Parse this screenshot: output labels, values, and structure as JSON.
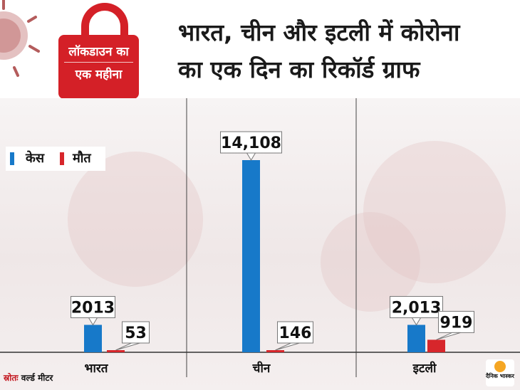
{
  "header": {
    "lock_line1": "लॉकडाउन का",
    "lock_line2": "एक महीना",
    "title_line1": "भारत, चीन और इटली में कोरोना",
    "title_line2": "का एक दिन का रिकॉर्ड ग्राफ"
  },
  "legend": {
    "cases_label": "केस",
    "deaths_label": "मौत"
  },
  "source": {
    "label": "स्रोतः",
    "value": "वर्ल्ड मीटर"
  },
  "logo": {
    "text": "दैनिक भास्कर"
  },
  "colors": {
    "cases": "#1779c9",
    "deaths": "#d7262b",
    "brand_red": "#d42027"
  },
  "chart_data": {
    "type": "bar",
    "categories": [
      "भारत",
      "चीन",
      "इटली"
    ],
    "series": [
      {
        "name": "केस",
        "values": [
          2013,
          14108,
          2013
        ],
        "labels": [
          "2013",
          "14,108",
          "2,013"
        ]
      },
      {
        "name": "मौत",
        "values": [
          53,
          146,
          919
        ],
        "labels": [
          "53",
          "146",
          "919"
        ]
      }
    ],
    "legend_position": "top-left"
  }
}
